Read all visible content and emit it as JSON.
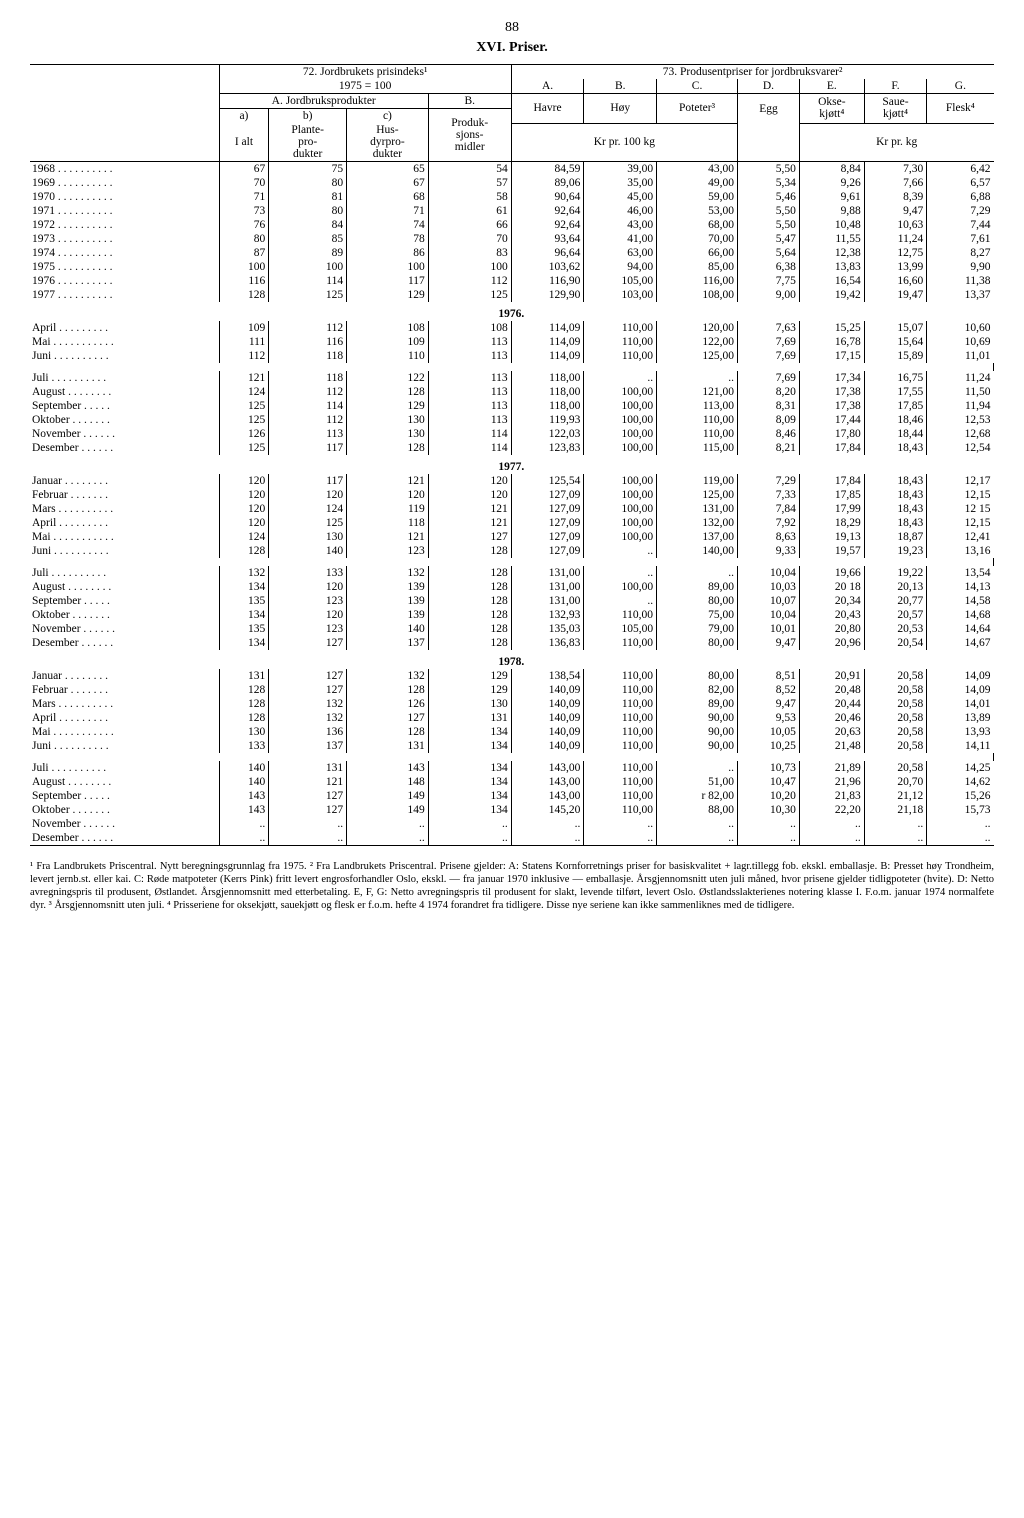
{
  "page_number": "88",
  "title": "XVI. Priser.",
  "left_header": {
    "main": "72. Jordbrukets prisindeks¹",
    "sub": "1975 = 100",
    "colA_label": "A. Jordbruksprodukter",
    "colB_label": "B.",
    "a_label": "a)",
    "b_label": "b)",
    "c_label": "c)",
    "ialt": "I alt",
    "plante": "Plante-\npro-\ndukter",
    "husdyr": "Hus-\ndyrpro-\ndukter",
    "produk": "Produk-\nsjons-\nmidler"
  },
  "right_header": {
    "main": "73. Produsentpriser for jordbruksvarer²",
    "A": "A.",
    "B": "B.",
    "C": "C.",
    "D": "D.",
    "E": "E.",
    "F": "F.",
    "G": "G.",
    "havre": "Havre",
    "hoy": "Høy",
    "poteter": "Poteter³",
    "egg": "Egg",
    "okse": "Okse-\nkjøtt⁴",
    "saue": "Saue-\nkjøtt⁴",
    "flesk": "Flesk⁴",
    "kr100": "Kr pr. 100 kg",
    "krkg": "Kr pr. kg"
  },
  "rows": [
    {
      "label": "1968",
      "a": "67",
      "b": "75",
      "c": "65",
      "d": "54",
      "A": "84,59",
      "B": "39,00",
      "C": "43,00",
      "D": "5,50",
      "E": "8,84",
      "F": "7,30",
      "G": "6,42"
    },
    {
      "label": "1969",
      "a": "70",
      "b": "80",
      "c": "67",
      "d": "57",
      "A": "89,06",
      "B": "35,00",
      "C": "49,00",
      "D": "5,34",
      "E": "9,26",
      "F": "7,66",
      "G": "6,57"
    },
    {
      "label": "1970",
      "a": "71",
      "b": "81",
      "c": "68",
      "d": "58",
      "A": "90,64",
      "B": "45,00",
      "C": "59,00",
      "D": "5,46",
      "E": "9,61",
      "F": "8,39",
      "G": "6,88"
    },
    {
      "label": "1971",
      "a": "73",
      "b": "80",
      "c": "71",
      "d": "61",
      "A": "92,64",
      "B": "46,00",
      "C": "53,00",
      "D": "5,50",
      "E": "9,88",
      "F": "9,47",
      "G": "7,29"
    },
    {
      "label": "1972",
      "a": "76",
      "b": "84",
      "c": "74",
      "d": "66",
      "A": "92,64",
      "B": "43,00",
      "C": "68,00",
      "D": "5,50",
      "E": "10,48",
      "F": "10,63",
      "G": "7,44"
    },
    {
      "label": "1973",
      "a": "80",
      "b": "85",
      "c": "78",
      "d": "70",
      "A": "93,64",
      "B": "41,00",
      "C": "70,00",
      "D": "5,47",
      "E": "11,55",
      "F": "11,24",
      "G": "7,61"
    },
    {
      "label": "1974",
      "a": "87",
      "b": "89",
      "c": "86",
      "d": "83",
      "A": "96,64",
      "B": "63,00",
      "C": "66,00",
      "D": "5,64",
      "E": "12,38",
      "F": "12,75",
      "G": "8,27"
    },
    {
      "label": "1975",
      "a": "100",
      "b": "100",
      "c": "100",
      "d": "100",
      "A": "103,62",
      "B": "94,00",
      "C": "85,00",
      "D": "6,38",
      "E": "13,83",
      "F": "13,99",
      "G": "9,90"
    },
    {
      "label": "1976",
      "a": "116",
      "b": "114",
      "c": "117",
      "d": "112",
      "A": "116,90",
      "B": "105,00",
      "C": "116,00",
      "D": "7,75",
      "E": "16,54",
      "F": "16,60",
      "G": "11,38"
    },
    {
      "label": "1977",
      "a": "128",
      "b": "125",
      "c": "129",
      "d": "125",
      "A": "129,90",
      "B": "103,00",
      "C": "108,00",
      "D": "9,00",
      "E": "19,42",
      "F": "19,47",
      "G": "13,37"
    }
  ],
  "y1976_label": "1976.",
  "y1976": [
    {
      "label": "April",
      "a": "109",
      "b": "112",
      "c": "108",
      "d": "108",
      "A": "114,09",
      "B": "110,00",
      "C": "120,00",
      "D": "7,63",
      "E": "15,25",
      "F": "15,07",
      "G": "10,60"
    },
    {
      "label": "Mai",
      "a": "111",
      "b": "116",
      "c": "109",
      "d": "113",
      "A": "114,09",
      "B": "110,00",
      "C": "122,00",
      "D": "7,69",
      "E": "16,78",
      "F": "15,64",
      "G": "10,69"
    },
    {
      "label": "Juni",
      "a": "112",
      "b": "118",
      "c": "110",
      "d": "113",
      "A": "114,09",
      "B": "110,00",
      "C": "125,00",
      "D": "7,69",
      "E": "17,15",
      "F": "15,89",
      "G": "11,01"
    }
  ],
  "y1976b": [
    {
      "label": "Juli",
      "a": "121",
      "b": "118",
      "c": "122",
      "d": "113",
      "A": "118,00",
      "B": "..",
      "C": "..",
      "D": "7,69",
      "E": "17,34",
      "F": "16,75",
      "G": "11,24"
    },
    {
      "label": "August",
      "a": "124",
      "b": "112",
      "c": "128",
      "d": "113",
      "A": "118,00",
      "B": "100,00",
      "C": "121,00",
      "D": "8,20",
      "E": "17,38",
      "F": "17,55",
      "G": "11,50"
    },
    {
      "label": "September",
      "a": "125",
      "b": "114",
      "c": "129",
      "d": "113",
      "A": "118,00",
      "B": "100,00",
      "C": "113,00",
      "D": "8,31",
      "E": "17,38",
      "F": "17,85",
      "G": "11,94"
    },
    {
      "label": "Oktober",
      "a": "125",
      "b": "112",
      "c": "130",
      "d": "113",
      "A": "119,93",
      "B": "100,00",
      "C": "110,00",
      "D": "8,09",
      "E": "17,44",
      "F": "18,46",
      "G": "12,53"
    },
    {
      "label": "November",
      "a": "126",
      "b": "113",
      "c": "130",
      "d": "114",
      "A": "122,03",
      "B": "100,00",
      "C": "110,00",
      "D": "8,46",
      "E": "17,80",
      "F": "18,44",
      "G": "12,68"
    },
    {
      "label": "Desember",
      "a": "125",
      "b": "117",
      "c": "128",
      "d": "114",
      "A": "123,83",
      "B": "100,00",
      "C": "115,00",
      "D": "8,21",
      "E": "17,84",
      "F": "18,43",
      "G": "12,54"
    }
  ],
  "y1977_label": "1977.",
  "y1977a": [
    {
      "label": "Januar",
      "a": "120",
      "b": "117",
      "c": "121",
      "d": "120",
      "A": "125,54",
      "B": "100,00",
      "C": "119,00",
      "D": "7,29",
      "E": "17,84",
      "F": "18,43",
      "G": "12,17"
    },
    {
      "label": "Februar",
      "a": "120",
      "b": "120",
      "c": "120",
      "d": "120",
      "A": "127,09",
      "B": "100,00",
      "C": "125,00",
      "D": "7,33",
      "E": "17,85",
      "F": "18,43",
      "G": "12,15"
    },
    {
      "label": "Mars",
      "a": "120",
      "b": "124",
      "c": "119",
      "d": "121",
      "A": "127,09",
      "B": "100,00",
      "C": "131,00",
      "D": "7,84",
      "E": "17,99",
      "F": "18,43",
      "G": "12 15"
    },
    {
      "label": "April",
      "a": "120",
      "b": "125",
      "c": "118",
      "d": "121",
      "A": "127,09",
      "B": "100,00",
      "C": "132,00",
      "D": "7,92",
      "E": "18,29",
      "F": "18,43",
      "G": "12,15"
    },
    {
      "label": "Mai",
      "a": "124",
      "b": "130",
      "c": "121",
      "d": "127",
      "A": "127,09",
      "B": "100,00",
      "C": "137,00",
      "D": "8,63",
      "E": "19,13",
      "F": "18,87",
      "G": "12,41"
    },
    {
      "label": "Juni",
      "a": "128",
      "b": "140",
      "c": "123",
      "d": "128",
      "A": "127,09",
      "B": "..",
      "C": "140,00",
      "D": "9,33",
      "E": "19,57",
      "F": "19,23",
      "G": "13,16"
    }
  ],
  "y1977b": [
    {
      "label": "Juli",
      "a": "132",
      "b": "133",
      "c": "132",
      "d": "128",
      "A": "131,00",
      "B": "..",
      "C": "..",
      "D": "10,04",
      "E": "19,66",
      "F": "19,22",
      "G": "13,54"
    },
    {
      "label": "August",
      "a": "134",
      "b": "120",
      "c": "139",
      "d": "128",
      "A": "131,00",
      "B": "100,00",
      "C": "89,00",
      "D": "10,03",
      "E": "20 18",
      "F": "20,13",
      "G": "14,13"
    },
    {
      "label": "September",
      "a": "135",
      "b": "123",
      "c": "139",
      "d": "128",
      "A": "131,00",
      "B": "..",
      "C": "80,00",
      "D": "10,07",
      "E": "20,34",
      "F": "20,77",
      "G": "14,58"
    },
    {
      "label": "Oktober",
      "a": "134",
      "b": "120",
      "c": "139",
      "d": "128",
      "A": "132,93",
      "B": "110,00",
      "C": "75,00",
      "D": "10,04",
      "E": "20,43",
      "F": "20,57",
      "G": "14,68"
    },
    {
      "label": "November",
      "a": "135",
      "b": "123",
      "c": "140",
      "d": "128",
      "A": "135,03",
      "B": "105,00",
      "C": "79,00",
      "D": "10,01",
      "E": "20,80",
      "F": "20,53",
      "G": "14,64"
    },
    {
      "label": "Desember",
      "a": "134",
      "b": "127",
      "c": "137",
      "d": "128",
      "A": "136,83",
      "B": "110,00",
      "C": "80,00",
      "D": "9,47",
      "E": "20,96",
      "F": "20,54",
      "G": "14,67"
    }
  ],
  "y1978_label": "1978.",
  "y1978a": [
    {
      "label": "Januar",
      "a": "131",
      "b": "127",
      "c": "132",
      "d": "129",
      "A": "138,54",
      "B": "110,00",
      "C": "80,00",
      "D": "8,51",
      "E": "20,91",
      "F": "20,58",
      "G": "14,09"
    },
    {
      "label": "Februar",
      "a": "128",
      "b": "127",
      "c": "128",
      "d": "129",
      "A": "140,09",
      "B": "110,00",
      "C": "82,00",
      "D": "8,52",
      "E": "20,48",
      "F": "20,58",
      "G": "14,09"
    },
    {
      "label": "Mars",
      "a": "128",
      "b": "132",
      "c": "126",
      "d": "130",
      "A": "140,09",
      "B": "110,00",
      "C": "89,00",
      "D": "9,47",
      "E": "20,44",
      "F": "20,58",
      "G": "14,01"
    },
    {
      "label": "April",
      "a": "128",
      "b": "132",
      "c": "127",
      "d": "131",
      "A": "140,09",
      "B": "110,00",
      "C": "90,00",
      "D": "9,53",
      "E": "20,46",
      "F": "20,58",
      "G": "13,89"
    },
    {
      "label": "Mai",
      "a": "130",
      "b": "136",
      "c": "128",
      "d": "134",
      "A": "140,09",
      "B": "110,00",
      "C": "90,00",
      "D": "10,05",
      "E": "20,63",
      "F": "20,58",
      "G": "13,93"
    },
    {
      "label": "Juni",
      "a": "133",
      "b": "137",
      "c": "131",
      "d": "134",
      "A": "140,09",
      "B": "110,00",
      "C": "90,00",
      "D": "10,25",
      "E": "21,48",
      "F": "20,58",
      "G": "14,11"
    }
  ],
  "y1978b": [
    {
      "label": "Juli",
      "a": "140",
      "b": "131",
      "c": "143",
      "d": "134",
      "A": "143,00",
      "B": "110,00",
      "C": "..",
      "D": "10,73",
      "E": "21,89",
      "F": "20,58",
      "G": "14,25"
    },
    {
      "label": "August",
      "a": "140",
      "b": "121",
      "c": "148",
      "d": "134",
      "A": "143,00",
      "B": "110,00",
      "C": "51,00",
      "D": "10,47",
      "E": "21,96",
      "F": "20,70",
      "G": "14,62"
    },
    {
      "label": "September",
      "a": "143",
      "b": "127",
      "c": "149",
      "d": "134",
      "A": "143,00",
      "B": "110,00",
      "C": "r 82,00",
      "D": "10,20",
      "E": "21,83",
      "F": "21,12",
      "G": "15,26"
    },
    {
      "label": "Oktober",
      "a": "143",
      "b": "127",
      "c": "149",
      "d": "134",
      "A": "145,20",
      "B": "110,00",
      "C": "88,00",
      "D": "10,30",
      "E": "22,20",
      "F": "21,18",
      "G": "15,73"
    },
    {
      "label": "November",
      "a": "..",
      "b": "..",
      "c": "..",
      "d": "..",
      "A": "..",
      "B": "..",
      "C": "..",
      "D": "..",
      "E": "..",
      "F": "..",
      "G": ".."
    },
    {
      "label": "Desember",
      "a": "..",
      "b": "..",
      "c": "..",
      "d": "..",
      "A": "..",
      "B": "..",
      "C": "..",
      "D": "..",
      "E": "..",
      "F": "..",
      "G": ".."
    }
  ],
  "footnotes": "¹ Fra Landbrukets Priscentral. Nytt beregningsgrunnlag fra 1975. ² Fra Landbrukets Priscentral. Prisene gjelder: A: Statens Kornforretnings priser for basiskvalitet + lagr.tillegg fob. ekskl. emballasje. B: Presset høy Trondheim, levert jernb.st. eller kai. C: Røde matpoteter (Kerrs Pink) fritt levert engrosforhandler Oslo, ekskl. — fra januar 1970 inklusive — emballasje. Årsgjennomsnitt uten juli måned, hvor prisene gjelder tidligpoteter (hvite). D: Netto avregningspris til produsent, Østlandet. Årsgjennomsnitt med etterbetaling. E, F, G: Netto avregningspris til produsent for slakt, levende tilført, levert Oslo. Østlandsslakterienes notering klasse I. F.o.m. januar 1974 normalfete dyr. ³ Årsgjennomsnitt uten juli. ⁴ Prisseriene for oksekjøtt, sauekjøtt og flesk er f.o.m. hefte 4 1974 forandret fra tidligere. Disse nye seriene kan ikke sammenliknes med de tidligere."
}
